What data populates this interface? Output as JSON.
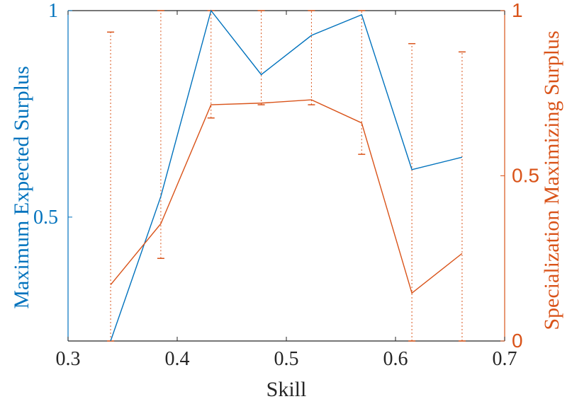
{
  "chart_data": {
    "type": "line",
    "xlabel": "Skill",
    "ylabel_left": "Maximum Expected Surplus",
    "ylabel_right": "Specialization Maximizing Surplus",
    "xlim": [
      0.3,
      0.7
    ],
    "ylim_left": [
      0.2,
      1
    ],
    "ylim_right": [
      0,
      1
    ],
    "x_ticks": [
      "0.3",
      "0.4",
      "0.5",
      "0.6",
      "0.7"
    ],
    "y_left_ticks": [
      "0.5",
      "1"
    ],
    "y_right_ticks": [
      "0",
      "0.5",
      "1"
    ],
    "colors": {
      "left": "#0072BD",
      "right": "#D95319"
    },
    "grid": false,
    "series": [
      {
        "axis": "left",
        "x": [
          0.339,
          0.385,
          0.431,
          0.477,
          0.523,
          0.569,
          0.615,
          0.661
        ],
        "y": [
          0.2,
          0.55,
          1.0,
          0.845,
          0.94,
          0.99,
          0.615,
          0.645
        ]
      },
      {
        "axis": "right",
        "x": [
          0.339,
          0.385,
          0.431,
          0.477,
          0.523,
          0.569,
          0.615,
          0.661
        ],
        "y": [
          0.17,
          0.355,
          0.715,
          0.72,
          0.73,
          0.66,
          0.145,
          0.265
        ],
        "err_low": [
          0.0,
          0.25,
          0.675,
          0.715,
          0.715,
          0.565,
          0.0,
          0.0
        ],
        "err_high": [
          0.935,
          1.0,
          1.0,
          1.0,
          1.0,
          1.0,
          0.9,
          0.875
        ]
      }
    ]
  }
}
